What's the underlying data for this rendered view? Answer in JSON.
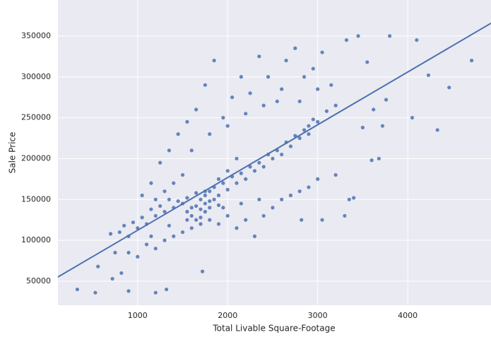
{
  "chart_data": {
    "type": "scatter",
    "xlabel": "Total Livable Square-Footage",
    "ylabel": "Sale Price",
    "xlim": [
      115,
      4925
    ],
    "ylim": [
      20600,
      394000
    ],
    "xticks": [
      1000,
      2000,
      3000,
      4000
    ],
    "yticks": [
      50000,
      100000,
      150000,
      200000,
      250000,
      300000,
      350000
    ],
    "grid": true,
    "color": "#4c72b0",
    "x": [
      330,
      530,
      560,
      700,
      720,
      750,
      820,
      900,
      1200,
      1320,
      1720,
      4050,
      4100,
      4230,
      4330,
      4460,
      4710,
      3800,
      3760,
      3720,
      3680,
      3600,
      3620,
      3500,
      3400,
      3350,
      3320,
      3450,
      3550,
      3300,
      2820,
      2900,
      3050,
      800,
      850,
      900,
      950,
      1000,
      1050,
      1100,
      1150,
      1200,
      1250,
      1300,
      1350,
      1400,
      1450,
      1500,
      1550,
      1600,
      1650,
      1700,
      1750,
      1800,
      1850,
      1900,
      1950,
      2000,
      2050,
      2100,
      2150,
      2200,
      2250,
      2300,
      2350,
      2400,
      2450,
      2500,
      2550,
      2600,
      2650,
      2700,
      2750,
      2800,
      2850,
      2900,
      2950,
      3000,
      3100,
      3200,
      1050,
      1150,
      1250,
      1350,
      1450,
      1550,
      1650,
      1750,
      1850,
      1950,
      2050,
      2150,
      2250,
      2350,
      2450,
      2550,
      2650,
      2750,
      2850,
      2950,
      3050,
      3150,
      1600,
      1800,
      2000,
      2200,
      2400,
      2600,
      2800,
      3000,
      900,
      1000,
      1100,
      1200,
      1300,
      1400,
      1500,
      1600,
      1700,
      1800,
      1900,
      2000,
      2100,
      2200,
      2300,
      2400,
      2500,
      2600,
      2700,
      2800,
      2900,
      3000,
      3200,
      1150,
      1350,
      1550,
      1750,
      1950,
      2150,
      2350,
      1550,
      1600,
      1650,
      1700,
      1750,
      1800,
      1850,
      1900,
      1700,
      1650,
      1750,
      1800,
      1900,
      2000,
      2100,
      1500,
      1400,
      1300,
      1200
    ],
    "values": [
      40000,
      36000,
      68000,
      108000,
      53000,
      85000,
      60000,
      38000,
      36000,
      40000,
      62000,
      250000,
      345000,
      302000,
      235000,
      287000,
      320000,
      350000,
      272000,
      240000,
      200000,
      198000,
      260000,
      238000,
      152000,
      150000,
      345000,
      350000,
      318000,
      130000,
      125000,
      230000,
      125000,
      110000,
      118000,
      105000,
      122000,
      115000,
      128000,
      120000,
      138000,
      130000,
      142000,
      135000,
      150000,
      140000,
      148000,
      145000,
      152000,
      140000,
      158000,
      150000,
      160000,
      148000,
      165000,
      155000,
      170000,
      162000,
      178000,
      170000,
      182000,
      175000,
      190000,
      185000,
      195000,
      190000,
      205000,
      200000,
      210000,
      205000,
      220000,
      215000,
      228000,
      225000,
      235000,
      240000,
      248000,
      245000,
      258000,
      265000,
      155000,
      170000,
      195000,
      210000,
      230000,
      245000,
      260000,
      290000,
      320000,
      250000,
      275000,
      300000,
      280000,
      325000,
      300000,
      270000,
      320000,
      335000,
      300000,
      310000,
      330000,
      290000,
      210000,
      230000,
      240000,
      255000,
      265000,
      285000,
      270000,
      285000,
      85000,
      80000,
      95000,
      90000,
      100000,
      105000,
      110000,
      115000,
      120000,
      125000,
      120000,
      130000,
      115000,
      125000,
      105000,
      130000,
      140000,
      150000,
      155000,
      160000,
      165000,
      175000,
      180000,
      105000,
      118000,
      125000,
      135000,
      140000,
      145000,
      150000,
      135000,
      130000,
      142000,
      138000,
      145000,
      140000,
      150000,
      143000,
      128000,
      125000,
      155000,
      160000,
      175000,
      185000,
      200000,
      180000,
      170000,
      160000,
      150000
    ],
    "trend": {
      "x": [
        115,
        4925
      ],
      "values": [
        55200,
        365600
      ]
    }
  }
}
